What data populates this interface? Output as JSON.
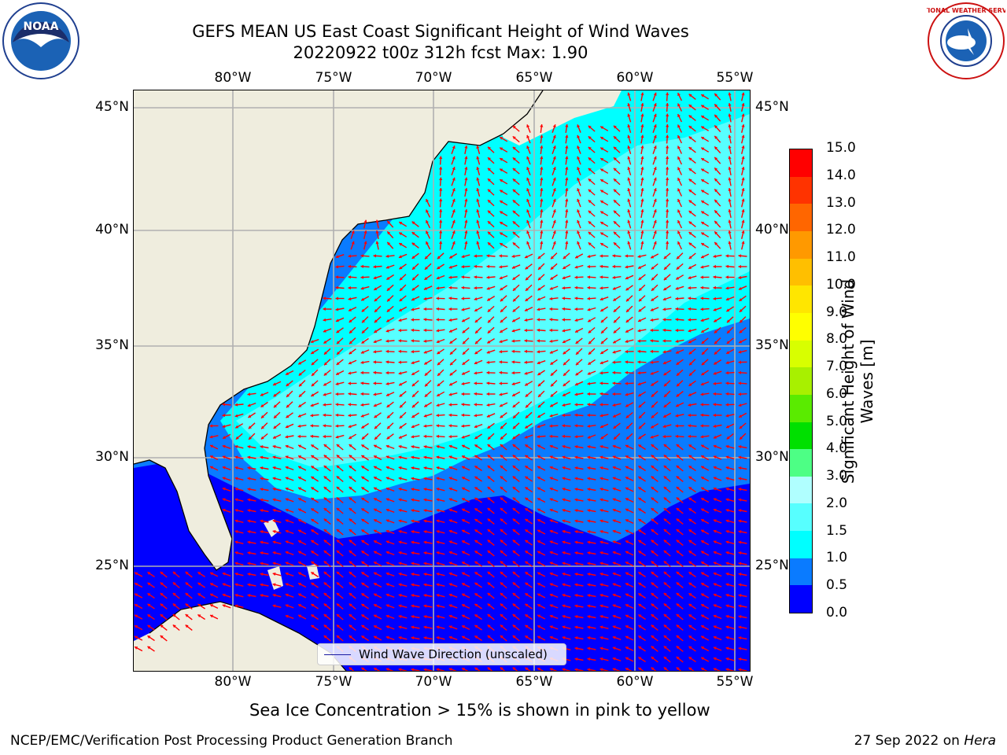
{
  "header": {
    "title_line1": "GEFS MEAN US East Coast Significant Height of Wind Waves",
    "title_line2": "20220922 t00z 312h fcst   Max: 1.90"
  },
  "logos": {
    "left": {
      "icon": "noaa-logo-icon",
      "text": "NOAA"
    },
    "right": {
      "icon": "nws-logo-icon",
      "text": "NATIONAL WEATHER SERVICE"
    }
  },
  "map": {
    "lon_ticks": [
      "80°W",
      "75°W",
      "70°W",
      "65°W",
      "60°W",
      "55°W"
    ],
    "lat_ticks": [
      "45°N",
      "40°N",
      "35°N",
      "30°N",
      "25°N"
    ],
    "legend_label": "Wind Wave Direction (unscaled)",
    "colors": {
      "land": "#efedde",
      "coast": "#000000",
      "grid": "#b0b0b0",
      "arrow": "#ff0000"
    }
  },
  "colorbar": {
    "title": "Significant Height of Wind Waves [m]",
    "title_line1": "Significant Height of Wind",
    "title_line2": "Waves [m]",
    "labels": [
      "0.0",
      "0.5",
      "1.0",
      "1.5",
      "2.0",
      "3.0",
      "4.0",
      "5.0",
      "6.0",
      "7.0",
      "8.0",
      "9.0",
      "10.0",
      "11.0",
      "12.0",
      "13.0",
      "14.0",
      "15.0"
    ],
    "colors": [
      "#0000ff",
      "#0a7bff",
      "#00ffff",
      "#57ffff",
      "#b0ffff",
      "#4dff85",
      "#00e000",
      "#5aeb00",
      "#a8f000",
      "#d8ff00",
      "#ffff00",
      "#ffe600",
      "#ffbf00",
      "#ff9900",
      "#ff6600",
      "#ff3300",
      "#ff0000"
    ]
  },
  "note": "Sea Ice Concentration > 15% is shown in pink to yellow",
  "footer": {
    "left": "NCEP/EMC/Verification Post Processing Product Generation Branch",
    "right_prefix": "27 Sep 2022 on ",
    "right_italic": "Hera"
  }
}
